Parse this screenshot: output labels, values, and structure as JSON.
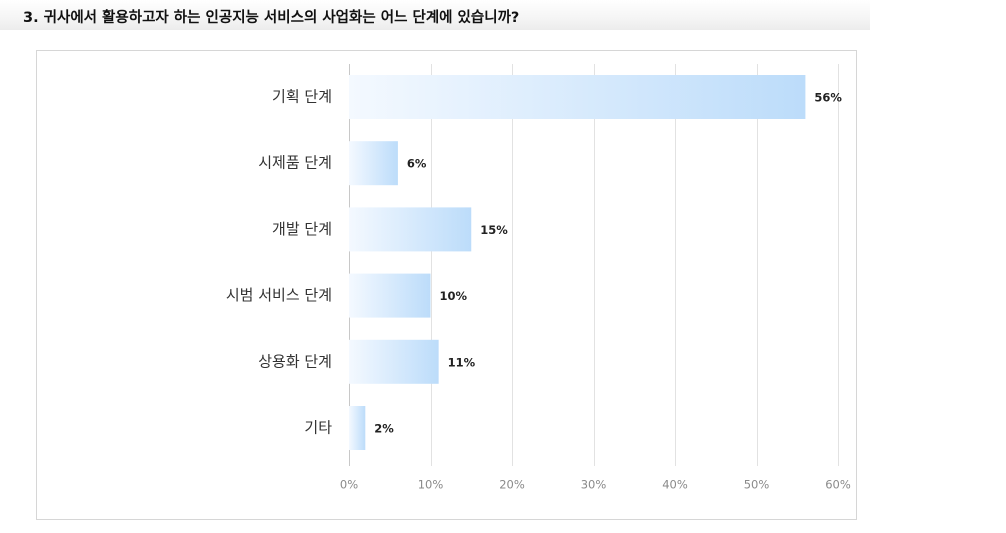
{
  "question_title": "3. 귀사에서 활용하고자 하는 인공지능 서비스의 사업화는 어느 단계에 있습니까?",
  "colors": {
    "bar_start": "#f4f9ff",
    "bar_end": "#bcdcfa",
    "gridline": "#e2e2e2",
    "axis_line": "#c8c8c8",
    "title_text": "#111111"
  },
  "chart_data": {
    "type": "bar",
    "orientation": "horizontal",
    "title": "",
    "xlabel": "",
    "ylabel": "",
    "categories": [
      "기획 단계",
      "시제품 단계",
      "개발 단계",
      "시범 서비스 단계",
      "상용화 단계",
      "기타"
    ],
    "values": [
      56,
      6,
      15,
      10,
      11,
      2
    ],
    "value_labels": [
      "56%",
      "6%",
      "15%",
      "10%",
      "11%",
      "2%"
    ],
    "xlim": [
      0,
      60
    ],
    "x_ticks": [
      0,
      10,
      20,
      30,
      40,
      50,
      60
    ],
    "x_tick_labels": [
      "0%",
      "10%",
      "20%",
      "30%",
      "40%",
      "50%",
      "60%"
    ],
    "grid": true,
    "legend": "none"
  }
}
